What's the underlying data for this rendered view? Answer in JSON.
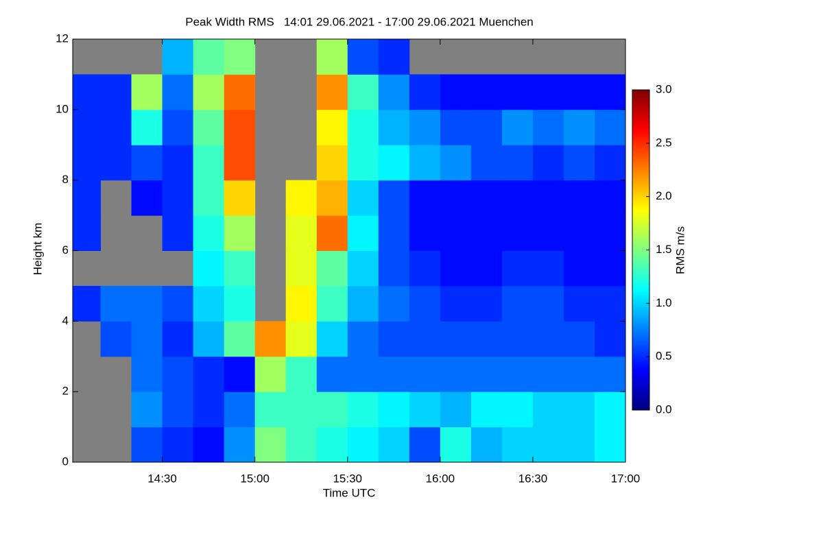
{
  "chart_data": {
    "type": "heatmap",
    "title": "Peak Width RMS   14:01 29.06.2021 - 17:00 29.06.2021 Muenchen",
    "x_label": "Time UTC",
    "y_label": "Height km",
    "colorbar_label": "RMS m/s",
    "xlim": [
      841,
      1020
    ],
    "xticks": [
      {
        "value": 870,
        "label": "14:30"
      },
      {
        "value": 900,
        "label": "15:00"
      },
      {
        "value": 930,
        "label": "15:30"
      },
      {
        "value": 960,
        "label": "16:00"
      },
      {
        "value": 990,
        "label": "16:30"
      },
      {
        "value": 1020,
        "label": "17:00"
      }
    ],
    "ylim": [
      0,
      12
    ],
    "yticks": [
      0,
      2,
      4,
      6,
      8,
      10,
      12
    ],
    "clim": [
      0,
      3
    ],
    "cticks": [
      {
        "value": 0,
        "label": "0.0"
      },
      {
        "value": 0.5,
        "label": "0.5"
      },
      {
        "value": 1,
        "label": "1.0"
      },
      {
        "value": 1.5,
        "label": "1.5"
      },
      {
        "value": 2,
        "label": "2.0"
      },
      {
        "value": 2.5,
        "label": "2.5"
      },
      {
        "value": 3,
        "label": "3.0"
      }
    ],
    "colormap": [
      "#00007f",
      "#0000ff",
      "#0080ff",
      "#00ffff",
      "#80ff80",
      "#ffff00",
      "#ff8000",
      "#ff0000",
      "#7f0000"
    ],
    "missing_color": "#808080",
    "xbins": [
      841,
      850,
      860,
      870,
      880,
      890,
      900,
      910,
      920,
      930,
      940,
      950,
      960,
      970,
      980,
      990,
      1000,
      1010,
      1020
    ],
    "ybins": [
      0,
      1,
      2,
      3,
      4,
      5,
      6,
      7,
      8,
      9,
      10,
      11,
      12
    ],
    "z": [
      [
        null,
        null,
        0.6,
        0.5,
        0.4,
        0.8,
        1.5,
        1.3,
        1.2,
        1.1,
        1.0,
        0.6,
        1.2,
        0.9,
        1.0,
        1.0,
        1.0,
        1.1
      ],
      [
        null,
        null,
        0.8,
        0.6,
        0.5,
        0.7,
        1.3,
        1.3,
        1.3,
        1.2,
        1.1,
        1.0,
        0.9,
        1.1,
        1.1,
        1.0,
        1.0,
        1.1
      ],
      [
        null,
        null,
        0.7,
        0.6,
        0.5,
        0.4,
        1.6,
        1.3,
        0.7,
        0.7,
        0.7,
        0.7,
        0.7,
        0.7,
        0.7,
        0.7,
        0.7,
        0.7
      ],
      [
        null,
        0.6,
        0.7,
        0.5,
        0.9,
        1.4,
        2.2,
        1.8,
        1.0,
        0.7,
        0.6,
        0.6,
        0.6,
        0.6,
        0.6,
        0.6,
        0.6,
        0.5
      ],
      [
        0.5,
        0.7,
        0.7,
        0.6,
        1.0,
        1.2,
        null,
        1.9,
        1.3,
        0.9,
        0.7,
        0.6,
        0.5,
        0.5,
        0.6,
        0.6,
        0.5,
        0.5
      ],
      [
        null,
        null,
        null,
        null,
        1.1,
        1.3,
        null,
        1.8,
        1.4,
        1.0,
        0.6,
        0.5,
        0.4,
        0.4,
        0.5,
        0.5,
        0.4,
        0.4
      ],
      [
        0.5,
        null,
        null,
        0.5,
        1.2,
        1.6,
        null,
        1.8,
        2.3,
        1.1,
        0.6,
        0.4,
        0.4,
        0.4,
        0.4,
        0.4,
        0.4,
        0.4
      ],
      [
        0.5,
        null,
        0.4,
        0.5,
        1.3,
        2.0,
        null,
        1.9,
        2.1,
        1.0,
        0.6,
        0.4,
        0.4,
        0.4,
        0.4,
        0.4,
        0.4,
        0.4
      ],
      [
        0.5,
        0.5,
        0.6,
        0.5,
        1.3,
        2.4,
        null,
        null,
        2.0,
        1.2,
        1.1,
        0.9,
        0.8,
        0.6,
        0.6,
        0.5,
        0.6,
        0.5
      ],
      [
        0.5,
        0.5,
        1.2,
        0.6,
        1.4,
        2.4,
        null,
        null,
        1.9,
        1.2,
        0.9,
        0.8,
        0.6,
        0.6,
        0.8,
        0.7,
        0.8,
        0.7
      ],
      [
        0.5,
        0.5,
        1.6,
        0.7,
        1.6,
        2.3,
        null,
        null,
        2.2,
        1.3,
        0.8,
        0.5,
        0.4,
        0.4,
        0.4,
        0.4,
        0.4,
        0.4
      ],
      [
        null,
        null,
        null,
        0.9,
        1.4,
        1.5,
        null,
        null,
        1.6,
        0.6,
        0.5,
        null,
        null,
        null,
        null,
        null,
        null,
        null
      ]
    ]
  }
}
